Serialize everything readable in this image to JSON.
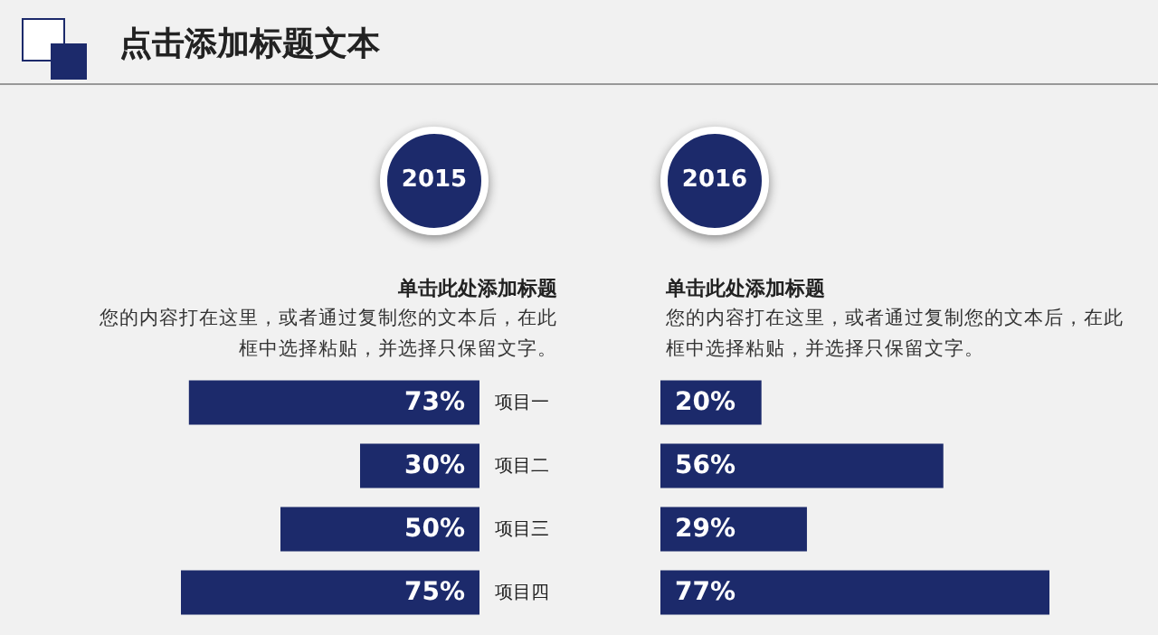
{
  "chart_data": [
    {
      "type": "bar",
      "orientation": "horizontal",
      "title": "2015",
      "subtitle": "单击此处添加标题",
      "annotations": [
        "点击添加标题文本",
        "您的内容打在这里，或者通过复制您的文本后，在此框中选择粘贴，并选择只保留文字。"
      ],
      "categories": [
        "项目一",
        "项目二",
        "项目三",
        "项目四"
      ],
      "values": [
        73,
        30,
        50,
        75
      ],
      "value_labels": [
        "73%",
        "30%",
        "50%",
        "75%"
      ],
      "color": "#1c2a6b",
      "tick_labels": "y"
    },
    {
      "type": "bar",
      "orientation": "horizontal",
      "title": "2016",
      "subtitle": "单击此处添加标题",
      "annotations": [
        "您的内容打在这里，或者通过复制您的文本后，在此框中选择粘贴，并选择只保留文字。"
      ],
      "categories": [
        null,
        null,
        null,
        null
      ],
      "values": [
        20,
        56,
        29,
        77
      ],
      "value_labels": [
        "20%",
        "56%",
        "29%",
        "77%"
      ],
      "color": "#1c2a6b",
      "tick_labels": false
    }
  ]
}
